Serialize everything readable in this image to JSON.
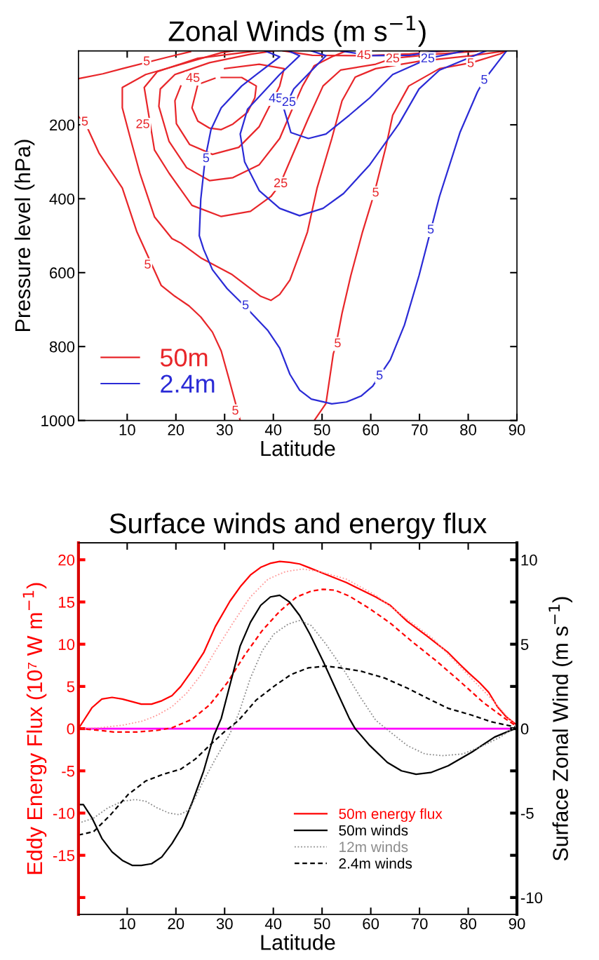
{
  "chart_data": [
    {
      "type": "line",
      "title": "Zonal Winds (m s$^{−1}$)",
      "xlabel": "Latitude",
      "ylabel": "Pressure level (hPa)",
      "xlim": [
        0,
        90
      ],
      "xticks": [
        10,
        20,
        30,
        40,
        50,
        60,
        70,
        80,
        90
      ],
      "ylim": [
        1000,
        0
      ],
      "yticks": [
        200,
        400,
        600,
        800,
        1000
      ],
      "grid": false,
      "legend": "bottom left",
      "line_style": "solid",
      "annotations": [
        {
          "text": "5",
          "x": 14,
          "y": 30
        },
        {
          "text": "5",
          "x": 1.3,
          "y": 193
        },
        {
          "text": "5",
          "x": 14.2,
          "y": 580
        },
        {
          "text": "5",
          "x": 32.2,
          "y": 975
        },
        {
          "text": "25",
          "x": 13.2,
          "y": 200
        },
        {
          "text": "25",
          "x": 41.5,
          "y": 360
        },
        {
          "text": "25",
          "x": 64.5,
          "y": 22
        },
        {
          "text": "45",
          "x": 23.5,
          "y": 75
        },
        {
          "text": "45",
          "x": 40.5,
          "y": 130
        },
        {
          "text": "45",
          "x": 58.6,
          "y": 13
        },
        {
          "text": "5",
          "x": 53.2,
          "y": 793
        },
        {
          "text": "5",
          "x": 61,
          "y": 385
        },
        {
          "text": "5",
          "x": 80.5,
          "y": 35
        },
        {
          "text": "5",
          "x": 26.2,
          "y": 292
        },
        {
          "text": "5",
          "x": 34.3,
          "y": 690
        },
        {
          "text": "5",
          "x": 61.8,
          "y": 880
        },
        {
          "text": "5",
          "x": 72.3,
          "y": 485
        },
        {
          "text": "5",
          "x": 83.3,
          "y": 80
        },
        {
          "text": "25",
          "x": 43.2,
          "y": 140
        },
        {
          "text": "25",
          "x": 71.7,
          "y": 22
        }
      ],
      "series": [
        {
          "name": "50m",
          "color": "#e8262a",
          "x": [
            0,
            5,
            9,
            18,
            23
          ],
          "values": [
            75,
            62,
            48,
            18,
            2
          ]
        },
        {
          "color": "#e8262a",
          "x": [
            0,
            1.3,
            4.2,
            9,
            12,
            17,
            19.8,
            22.7,
            25.1,
            27.5,
            29.3,
            30.8,
            33.2
          ],
          "values": [
            178,
            193,
            276,
            371,
            490,
            635,
            664,
            690,
            720,
            761,
            812,
            883,
            1000
          ]
        },
        {
          "color": "#e8262a",
          "x": [
            31.7,
            29.3,
            22.2,
            13.8,
            9,
            9,
            10.5,
            12.6,
            15.6,
            19.2,
            21,
            25.1,
            31.4,
            37.4,
            39.5,
            41.3,
            43.4,
            45.4,
            47,
            49,
            52,
            54.1,
            56.8,
            61,
            69.9,
            80.7,
            87.2
          ],
          "values": [
            0,
            5,
            32,
            64,
            99,
            154,
            229,
            331,
            449,
            508,
            520,
            560,
            604,
            664,
            675,
            659,
            620,
            549,
            490,
            370,
            237,
            135,
            71,
            48,
            28,
            13,
            1
          ]
        },
        {
          "color": "#e8262a",
          "x": [
            36.5,
            24.5,
            16.2,
            13.5,
            15.6,
            18.6,
            23.3,
            29.3,
            35.3,
            39.5,
            41.3,
            43.6,
            47.2,
            50.2,
            53.8,
            61,
            64.5,
            72.9,
            81.9
          ],
          "values": [
            0,
            20,
            56,
            99,
            268,
            331,
            418,
            448,
            434,
            394,
            363,
            292,
            182,
            95,
            52,
            36,
            20,
            9,
            1
          ]
        },
        {
          "color": "#e8262a",
          "x": [
            40,
            35.3,
            26.9,
            19.8,
            16.8,
            16.5,
            18.6,
            22.2,
            26.9,
            31.7,
            37.1,
            41.3,
            43.6,
            46,
            48.4,
            52,
            55
          ],
          "values": [
            0,
            9,
            32,
            64,
            103,
            150,
            245,
            316,
            351,
            343,
            308,
            237,
            166,
            95,
            40,
            16,
            0
          ]
        },
        {
          "color": "#e8262a",
          "x": [
            30,
            37.1,
            42.2,
            41.3,
            37.1,
            32.9,
            27.5,
            22.8,
            20.1,
            19.8,
            21
          ],
          "values": [
            48,
            36,
            48,
            95,
            205,
            261,
            280,
            253,
            197,
            135,
            95
          ]
        },
        {
          "color": "#e8262a",
          "x": [
            42,
            48,
            58.6,
            68,
            76
          ],
          "values": [
            0,
            12,
            13,
            8,
            0
          ]
        },
        {
          "color": "#e8262a",
          "x": [
            29.3,
            33.5,
            36.5,
            36.2,
            34.7,
            31.7,
            29.3,
            26.9,
            24.5,
            23.3,
            24.5,
            28
          ],
          "values": [
            72,
            72,
            95,
            127,
            166,
            198,
            213,
            209,
            190,
            154,
            91,
            74
          ]
        },
        {
          "color": "#e8262a",
          "x": [
            48.4,
            50.8,
            52.3,
            52.9,
            54.1,
            55.9,
            58.3,
            60.7,
            63.1,
            64.5,
            67.8,
            74.1,
            80.7,
            86.6,
            87.8
          ],
          "values": [
            1000,
            954,
            820,
            793,
            710,
            608,
            490,
            386,
            260,
            174,
            95,
            48,
            32,
            8,
            0
          ]
        },
        {
          "name": "2.4m",
          "color": "#2b2bd6",
          "x": [
            38.3,
            41.3,
            36.5,
            33.5,
            29.3,
            27.2,
            26,
            25.1,
            24.8,
            25.7,
            27.5,
            30.5,
            34.1,
            38.9,
            41.3,
            43.4,
            45.4,
            47.8,
            52,
            55,
            58,
            60.4,
            61.6,
            64,
            66.9,
            69.9,
            74.1,
            78.3,
            81.9,
            83.2,
            86,
            87.8
          ],
          "values": [
            0,
            16,
            64,
            95,
            154,
            213,
            292,
            402,
            500,
            537,
            592,
            643,
            690,
            757,
            804,
            875,
            918,
            942,
            955,
            950,
            934,
            907,
            883,
            836,
            742,
            608,
            394,
            221,
            111,
            80,
            32,
            1
          ]
        },
        {
          "color": "#2b2bd6",
          "x": [
            43.1,
            45.4,
            41.3,
            34.7,
            33.2,
            34.1,
            37.1,
            41.3,
            45.4,
            50.2,
            54.4,
            59.8,
            65.8,
            69.9,
            74.1,
            83.6
          ],
          "values": [
            0,
            13,
            64,
            158,
            225,
            300,
            378,
            426,
            446,
            426,
            386,
            308,
            197,
            103,
            52,
            0
          ]
        },
        {
          "color": "#2b2bd6",
          "x": [
            47.8,
            50.8,
            44.2,
            42.2,
            43.6,
            47.2,
            50.8,
            55.6,
            59.8,
            64.5,
            69.9,
            71.7,
            75.9,
            78.9
          ],
          "values": [
            0,
            13,
            103,
            158,
            221,
            237,
            225,
            174,
            127,
            64,
            32,
            20,
            9,
            1
          ]
        },
        {
          "color": "#2b2bd6",
          "x": [
            53.8,
            60,
            68,
            74
          ],
          "values": [
            0,
            13,
            12,
            0
          ]
        }
      ]
    },
    {
      "type": "line",
      "title": "Surface winds and energy flux",
      "xlabel": "Latitude",
      "ylabel": "Eddy Energy Flux (10⁷ W m$^{−1}$)",
      "y2label": "Surface Zonal Wind (m s$^{−1}$)",
      "xlim": [
        0,
        90
      ],
      "xticks": [
        10,
        20,
        30,
        40,
        50,
        60,
        70,
        80,
        90
      ],
      "ylim": [
        -22,
        22
      ],
      "yticks": [
        20,
        15,
        10,
        5,
        0,
        -5,
        -10,
        -15,
        {
          "value": -20,
          "label": null
        }
      ],
      "y2lim": [
        -11,
        11
      ],
      "y2ticks": [
        10,
        {
          "value": 7.5,
          "label": null
        },
        5,
        {
          "value": 2.5,
          "label": null
        },
        0,
        {
          "value": -2.5,
          "label": null
        },
        -5,
        {
          "value": -7.5,
          "label": null
        },
        -10
      ],
      "grid": false,
      "legend": "bottom right",
      "ref_lines": [
        {
          "axis": "y",
          "value": 0,
          "color": "#ff00ff",
          "line_style": "solid"
        }
      ],
      "series": [
        {
          "name": "50m energy flux",
          "color": "#ff0000",
          "line_style": "solid",
          "x": [
            0,
            2.8,
            4.8,
            6.9,
            9,
            12.9,
            15,
            17.1,
            19.2,
            21,
            23.1,
            25.7,
            28.1,
            31.1,
            33.2,
            35.3,
            37.4,
            39.5,
            41.3,
            43.3,
            45.4,
            47.2,
            50.2,
            55,
            61,
            64,
            67.5,
            71.7,
            75.9,
            78.3,
            80.1,
            82.4,
            84.2,
            86,
            87.8,
            89.6
          ],
          "values": [
            0,
            2.5,
            3.5,
            3.7,
            3.5,
            2.9,
            2.9,
            3.3,
            3.9,
            5,
            6.7,
            9,
            12.1,
            15.1,
            16.8,
            18.2,
            19.1,
            19.6,
            19.8,
            19.7,
            19.5,
            19.1,
            18.4,
            17.3,
            15.6,
            14.6,
            12.7,
            10.9,
            9,
            7.6,
            6.6,
            5.4,
            4.3,
            2.6,
            1.4,
            0.6
          ]
        },
        {
          "color": "#ff9a9a",
          "line_style": "dotted",
          "x": [
            0,
            4.3,
            9,
            13.2,
            16.2,
            19.2,
            22.2,
            25.2,
            28.1,
            31.7,
            35.3,
            38.9,
            42.5,
            46,
            49.6,
            55,
            61,
            66.9,
            72.9,
            78.9,
            84.8,
            89.6
          ],
          "values": [
            0,
            0.1,
            0.4,
            0.9,
            1.6,
            2.6,
            4.2,
            6.4,
            9.2,
            12.5,
            15.6,
            17.7,
            18.6,
            18.9,
            18.6,
            17.7,
            15.8,
            13.2,
            10.6,
            7,
            3.5,
            0.4
          ]
        },
        {
          "color": "#ff0000",
          "line_style": "dashed",
          "x": [
            0,
            4.3,
            7.2,
            12,
            16.2,
            19.2,
            23.3,
            26.9,
            30.5,
            34.1,
            37.7,
            41.3,
            44.8,
            47.8,
            50.2,
            52.6,
            55.6,
            59.8,
            64,
            68.7,
            73.5,
            78.3,
            83.1,
            87.8,
            89.6
          ],
          "values": [
            0,
            -0.2,
            -0.4,
            -0.4,
            -0.2,
            0.1,
            1.1,
            2.8,
            5.4,
            8.7,
            11.6,
            13.9,
            15.6,
            16.3,
            16.5,
            16.4,
            15.7,
            14.2,
            12.5,
            10.2,
            8,
            5.6,
            3.1,
            1.1,
            0.4
          ]
        },
        {
          "name": "50m winds",
          "color": "#000000",
          "line_style": "solid",
          "axis": "y2",
          "x": [
            0,
            1,
            2.8,
            4.8,
            6.9,
            9,
            11.1,
            12.9,
            15,
            17.1,
            19.2,
            21.3,
            23.3,
            25.7,
            27.8,
            29.3,
            31.1,
            33.2,
            35.3,
            37.4,
            39.4,
            41.3,
            43.3,
            45.4,
            47.5,
            50.2,
            53.2,
            55.6,
            56.8,
            59.8,
            63.4,
            66.3,
            69.3,
            72.3,
            75.9,
            80.7,
            85.4,
            89.6
          ],
          "values": [
            -4.5,
            -4.5,
            -5.3,
            -6.5,
            -7.3,
            -7.8,
            -8.1,
            -8.1,
            -8,
            -7.6,
            -6.8,
            -5.8,
            -4.4,
            -2.5,
            -0.4,
            0.6,
            2.6,
            4.9,
            6.3,
            7.3,
            7.8,
            7.9,
            7.5,
            6.7,
            5.6,
            4,
            2.1,
            0.6,
            0,
            -1,
            -2,
            -2.5,
            -2.7,
            -2.6,
            -2.2,
            -1.4,
            -0.5,
            0
          ]
        },
        {
          "name": "12m winds",
          "color": "#8c8c8c",
          "line_style": "dotted",
          "axis": "y2",
          "x": [
            0,
            3.1,
            6,
            9,
            11.7,
            13.8,
            16.2,
            18.6,
            20.7,
            22.8,
            25.1,
            28.1,
            31.1,
            32.9,
            35.3,
            37.7,
            40.1,
            43.1,
            45.4,
            47.8,
            50.8,
            54.4,
            58,
            61,
            64,
            67.5,
            71.1,
            74.7,
            78.9,
            83.1,
            86.6,
            89.6
          ],
          "values": [
            -5.6,
            -5.3,
            -4.7,
            -4.3,
            -4.2,
            -4.3,
            -4.7,
            -5,
            -5.1,
            -4.8,
            -3.4,
            -1.8,
            -0.3,
            0.9,
            3,
            4.6,
            5.6,
            6.2,
            6.4,
            6.1,
            5,
            3.5,
            1.8,
            0.5,
            -0.2,
            -1,
            -1.5,
            -1.6,
            -1.5,
            -1,
            -0.5,
            0.1
          ]
        },
        {
          "name": "2.4m winds",
          "color": "#000000",
          "line_style": "dashed",
          "axis": "y2",
          "x": [
            0,
            3.1,
            6.6,
            10.2,
            13.8,
            17.4,
            21,
            24,
            26.9,
            29.9,
            32.9,
            36.5,
            40.1,
            43.6,
            47.2,
            50.8,
            53.8,
            58,
            62.8,
            67.5,
            72.3,
            75.9,
            80.7,
            84.8,
            89.6
          ],
          "values": [
            -6.3,
            -6.1,
            -5.1,
            -3.9,
            -3.1,
            -2.7,
            -2.4,
            -1.8,
            -1,
            -0.2,
            0.5,
            1.7,
            2.5,
            3.2,
            3.6,
            3.7,
            3.6,
            3.4,
            3,
            2.4,
            1.7,
            1.2,
            0.8,
            0.4,
            0.1
          ]
        }
      ]
    }
  ]
}
